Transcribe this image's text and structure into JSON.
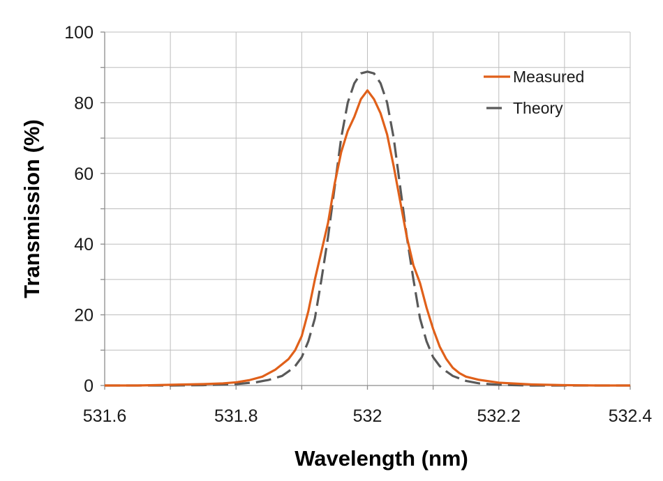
{
  "chart_data": {
    "type": "line",
    "title": "",
    "xlabel": "Wavelength (nm)",
    "ylabel": "Transmission (%)",
    "xlim": [
      531.6,
      532.4
    ],
    "ylim": [
      0,
      100
    ],
    "x_ticks": [
      531.6,
      531.7,
      531.8,
      531.9,
      532.0,
      532.1,
      532.2,
      532.3,
      532.4
    ],
    "x_tick_labels": [
      "531.6",
      "",
      "531.8",
      "",
      "532",
      "",
      "532.2",
      "",
      "532.4"
    ],
    "y_ticks": [
      0,
      10,
      20,
      30,
      40,
      50,
      60,
      70,
      80,
      90,
      100
    ],
    "y_tick_labels": [
      "0",
      "",
      "20",
      "",
      "40",
      "",
      "60",
      "",
      "80",
      "",
      "100"
    ],
    "grid": true,
    "legend_position": "top-right",
    "series": [
      {
        "name": "Measured",
        "color": "#e0601a",
        "style": "solid",
        "x": [
          531.6,
          531.65,
          531.7,
          531.75,
          531.78,
          531.8,
          531.82,
          531.84,
          531.86,
          531.87,
          531.88,
          531.89,
          531.9,
          531.91,
          531.92,
          531.93,
          531.94,
          531.95,
          531.96,
          531.97,
          531.98,
          531.99,
          532.0,
          532.01,
          532.02,
          532.03,
          532.04,
          532.05,
          532.06,
          532.07,
          532.08,
          532.09,
          532.1,
          532.11,
          532.12,
          532.13,
          532.14,
          532.15,
          532.17,
          532.2,
          532.25,
          532.3,
          532.35,
          532.4
        ],
        "y": [
          0,
          0,
          0.2,
          0.4,
          0.6,
          0.9,
          1.5,
          2.5,
          4.5,
          6,
          7.5,
          10,
          14,
          21,
          30,
          38,
          46,
          57,
          66,
          72,
          76,
          81,
          83.5,
          81,
          77,
          71,
          62,
          52,
          42,
          34,
          29,
          22,
          16,
          11,
          7.5,
          5,
          3.5,
          2.5,
          1.6,
          0.8,
          0.3,
          0.1,
          0,
          0
        ]
      },
      {
        "name": "Theory",
        "color": "#595959",
        "style": "dashed",
        "x": [
          531.6,
          531.7,
          531.75,
          531.8,
          531.83,
          531.85,
          531.87,
          531.88,
          531.89,
          531.9,
          531.91,
          531.92,
          531.93,
          531.94,
          531.95,
          531.96,
          531.97,
          531.98,
          531.99,
          532.0,
          532.01,
          532.02,
          532.03,
          532.04,
          532.05,
          532.06,
          532.07,
          532.08,
          532.09,
          532.1,
          532.11,
          532.12,
          532.13,
          532.15,
          532.17,
          532.2,
          532.25,
          532.3,
          532.4
        ],
        "y": [
          0,
          0,
          0.1,
          0.4,
          0.9,
          1.6,
          2.7,
          4,
          5.5,
          8,
          12.5,
          19,
          30,
          42,
          56,
          70,
          80,
          85.5,
          88.3,
          88.8,
          88.3,
          85.5,
          80,
          70,
          56,
          42,
          30,
          19,
          12.5,
          8,
          5.5,
          4,
          2.7,
          1.3,
          0.6,
          0.2,
          0,
          0,
          0
        ]
      }
    ]
  }
}
